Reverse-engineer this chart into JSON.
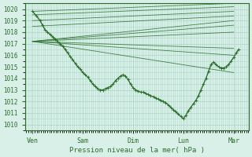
{
  "title": "Pression niveau de la mer( hPa )",
  "xlabels": [
    "Ven",
    "Sam",
    "Dim",
    "Lun",
    "Mar"
  ],
  "xticks": [
    0,
    1,
    2,
    3,
    4
  ],
  "ylim": [
    1009.5,
    1020.5
  ],
  "yticks": [
    1010,
    1011,
    1012,
    1013,
    1014,
    1015,
    1016,
    1017,
    1018,
    1019,
    1020
  ],
  "bg_color": "#d8f0e8",
  "grid_color": "#b0d8c8",
  "line_color": "#2d6e2d",
  "font_color": "#2d6e2d",
  "forecast_lines": [
    {
      "x": [
        0.0,
        4.0
      ],
      "y": [
        1019.8,
        1020.5
      ]
    },
    {
      "x": [
        0.0,
        4.0
      ],
      "y": [
        1019.5,
        1020.2
      ]
    },
    {
      "x": [
        0.0,
        4.0
      ],
      "y": [
        1019.0,
        1019.8
      ]
    },
    {
      "x": [
        0.0,
        4.0
      ],
      "y": [
        1018.5,
        1019.4
      ]
    },
    {
      "x": [
        0.0,
        4.0
      ],
      "y": [
        1017.2,
        1019.0
      ]
    },
    {
      "x": [
        0.0,
        4.0
      ],
      "y": [
        1017.2,
        1018.6
      ]
    },
    {
      "x": [
        0.0,
        4.0
      ],
      "y": [
        1017.2,
        1018.0
      ]
    },
    {
      "x": [
        0.0,
        4.0
      ],
      "y": [
        1017.2,
        1016.6
      ]
    },
    {
      "x": [
        0.0,
        4.0
      ],
      "y": [
        1017.2,
        1016.0
      ]
    },
    {
      "x": [
        0.0,
        4.0
      ],
      "y": [
        1017.2,
        1014.5
      ]
    }
  ],
  "main_curve_x": [
    0.0,
    0.08,
    0.15,
    0.2,
    0.25,
    0.3,
    0.35,
    0.4,
    0.45,
    0.5,
    0.55,
    0.6,
    0.65,
    0.7,
    0.75,
    0.8,
    0.85,
    0.9,
    0.95,
    1.0,
    1.05,
    1.1,
    1.15,
    1.2,
    1.25,
    1.3,
    1.35,
    1.4,
    1.45,
    1.5,
    1.55,
    1.6,
    1.65,
    1.7,
    1.75,
    1.8,
    1.85,
    1.9,
    1.95,
    2.0,
    2.05,
    2.1,
    2.15,
    2.2,
    2.25,
    2.3,
    2.35,
    2.4,
    2.45,
    2.5,
    2.55,
    2.6,
    2.65,
    2.7,
    2.75,
    2.8,
    2.85,
    2.9,
    2.95,
    3.0,
    3.05,
    3.1,
    3.15,
    3.2,
    3.25,
    3.3,
    3.35,
    3.4,
    3.45,
    3.5,
    3.55,
    3.6,
    3.65,
    3.7,
    3.75,
    3.8,
    3.85,
    3.9,
    3.95,
    4.0,
    4.05,
    4.1
  ],
  "main_curve_y": [
    1019.8,
    1019.4,
    1019.0,
    1018.6,
    1018.2,
    1018.0,
    1017.8,
    1017.6,
    1017.4,
    1017.2,
    1017.0,
    1016.8,
    1016.5,
    1016.2,
    1015.9,
    1015.6,
    1015.3,
    1015.0,
    1014.8,
    1014.5,
    1014.3,
    1014.1,
    1013.8,
    1013.5,
    1013.3,
    1013.1,
    1013.0,
    1013.0,
    1013.1,
    1013.2,
    1013.3,
    1013.5,
    1013.8,
    1014.0,
    1014.2,
    1014.3,
    1014.2,
    1013.9,
    1013.5,
    1013.2,
    1013.0,
    1012.9,
    1012.8,
    1012.8,
    1012.7,
    1012.6,
    1012.5,
    1012.4,
    1012.3,
    1012.2,
    1012.1,
    1012.0,
    1011.9,
    1011.7,
    1011.5,
    1011.3,
    1011.1,
    1010.9,
    1010.7,
    1010.5,
    1010.8,
    1011.2,
    1011.5,
    1011.8,
    1012.1,
    1012.5,
    1013.0,
    1013.5,
    1014.0,
    1014.6,
    1015.2,
    1015.4,
    1015.2,
    1015.0,
    1014.9,
    1014.9,
    1015.0,
    1015.2,
    1015.5,
    1015.8,
    1016.2,
    1016.5
  ]
}
